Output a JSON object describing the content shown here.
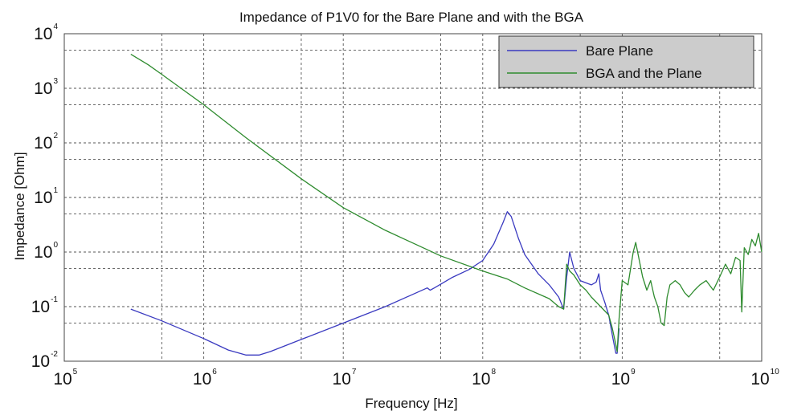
{
  "chart_data": {
    "type": "line",
    "title": "Impedance of P1V0 for the Bare Plane and with the BGA",
    "xlabel": "Frequency [Hz]",
    "ylabel": "Impedance [Ohm]",
    "x_scale": "log",
    "y_scale": "log",
    "xlim": [
      100000,
      10000000000
    ],
    "ylim": [
      0.01,
      10000
    ],
    "grid": true,
    "legend_position": "top-right",
    "x_ticks": [
      {
        "base": "10",
        "exp": "5"
      },
      {
        "base": "10",
        "exp": "6"
      },
      {
        "base": "10",
        "exp": "7"
      },
      {
        "base": "10",
        "exp": "8"
      },
      {
        "base": "10",
        "exp": "9"
      },
      {
        "base": "10",
        "exp": "10"
      }
    ],
    "y_ticks": [
      {
        "base": "10",
        "exp": "4"
      },
      {
        "base": "10",
        "exp": "3"
      },
      {
        "base": "10",
        "exp": "2"
      },
      {
        "base": "10",
        "exp": "1"
      },
      {
        "base": "10",
        "exp": "0"
      },
      {
        "base": "10",
        "exp": "-1"
      },
      {
        "base": "10",
        "exp": "-2"
      }
    ],
    "series": [
      {
        "name": "Bare Plane",
        "color": "#3a3ac0",
        "x": [
          300000,
          500000,
          1000000,
          1500000,
          2000000,
          2500000,
          3000000,
          5000000,
          10000000,
          20000000,
          40000000,
          42000000,
          45000000,
          60000000,
          80000000,
          100000000,
          120000000,
          140000000,
          150000000,
          160000000,
          180000000,
          200000000,
          250000000,
          300000000,
          350000000,
          380000000,
          400000000,
          420000000,
          450000000,
          500000000,
          600000000,
          650000000,
          680000000,
          700000000,
          750000000,
          800000000,
          850000000,
          900000000,
          920000000,
          950000000
        ],
        "y": [
          0.09,
          0.055,
          0.026,
          0.016,
          0.013,
          0.013,
          0.015,
          0.025,
          0.05,
          0.1,
          0.22,
          0.2,
          0.22,
          0.34,
          0.48,
          0.7,
          1.4,
          3.5,
          5.5,
          4.5,
          1.8,
          0.9,
          0.4,
          0.25,
          0.15,
          0.09,
          0.35,
          1.0,
          0.5,
          0.3,
          0.25,
          0.28,
          0.4,
          0.2,
          0.12,
          0.07,
          0.03,
          0.014,
          0.014,
          0.04
        ]
      },
      {
        "name": "BGA and the Plane",
        "color": "#2e8b2e",
        "x": [
          300000,
          400000,
          500000,
          1000000,
          2000000,
          5000000,
          10000000,
          20000000,
          50000000,
          100000000,
          150000000,
          200000000,
          300000000,
          350000000,
          380000000,
          400000000,
          420000000,
          450000000,
          500000000,
          550000000,
          600000000,
          700000000,
          800000000,
          850000000,
          900000000,
          920000000,
          950000000,
          1000000000,
          1100000000,
          1200000000,
          1250000000,
          1300000000,
          1400000000,
          1500000000,
          1600000000,
          1700000000,
          1800000000,
          1900000000,
          2000000000,
          2100000000,
          2200000000,
          2400000000,
          2600000000,
          2800000000,
          3000000000,
          3300000000,
          3600000000,
          4000000000,
          4500000000,
          5000000000,
          5500000000,
          6000000000,
          6500000000,
          7000000000,
          7200000000,
          7500000000,
          8000000000,
          8500000000,
          9000000000,
          9500000000,
          10000000000
        ],
        "y": [
          4200,
          2700,
          1800,
          500,
          125,
          22,
          6.5,
          2.5,
          0.85,
          0.45,
          0.32,
          0.22,
          0.14,
          0.1,
          0.09,
          0.6,
          0.45,
          0.38,
          0.25,
          0.2,
          0.15,
          0.1,
          0.07,
          0.04,
          0.02,
          0.015,
          0.06,
          0.3,
          0.25,
          1.0,
          1.5,
          0.9,
          0.35,
          0.2,
          0.3,
          0.15,
          0.1,
          0.05,
          0.045,
          0.15,
          0.25,
          0.3,
          0.25,
          0.18,
          0.15,
          0.2,
          0.25,
          0.3,
          0.2,
          0.35,
          0.6,
          0.4,
          0.8,
          0.7,
          0.08,
          1.2,
          0.9,
          1.7,
          1.3,
          2.2,
          1.0
        ]
      }
    ]
  }
}
